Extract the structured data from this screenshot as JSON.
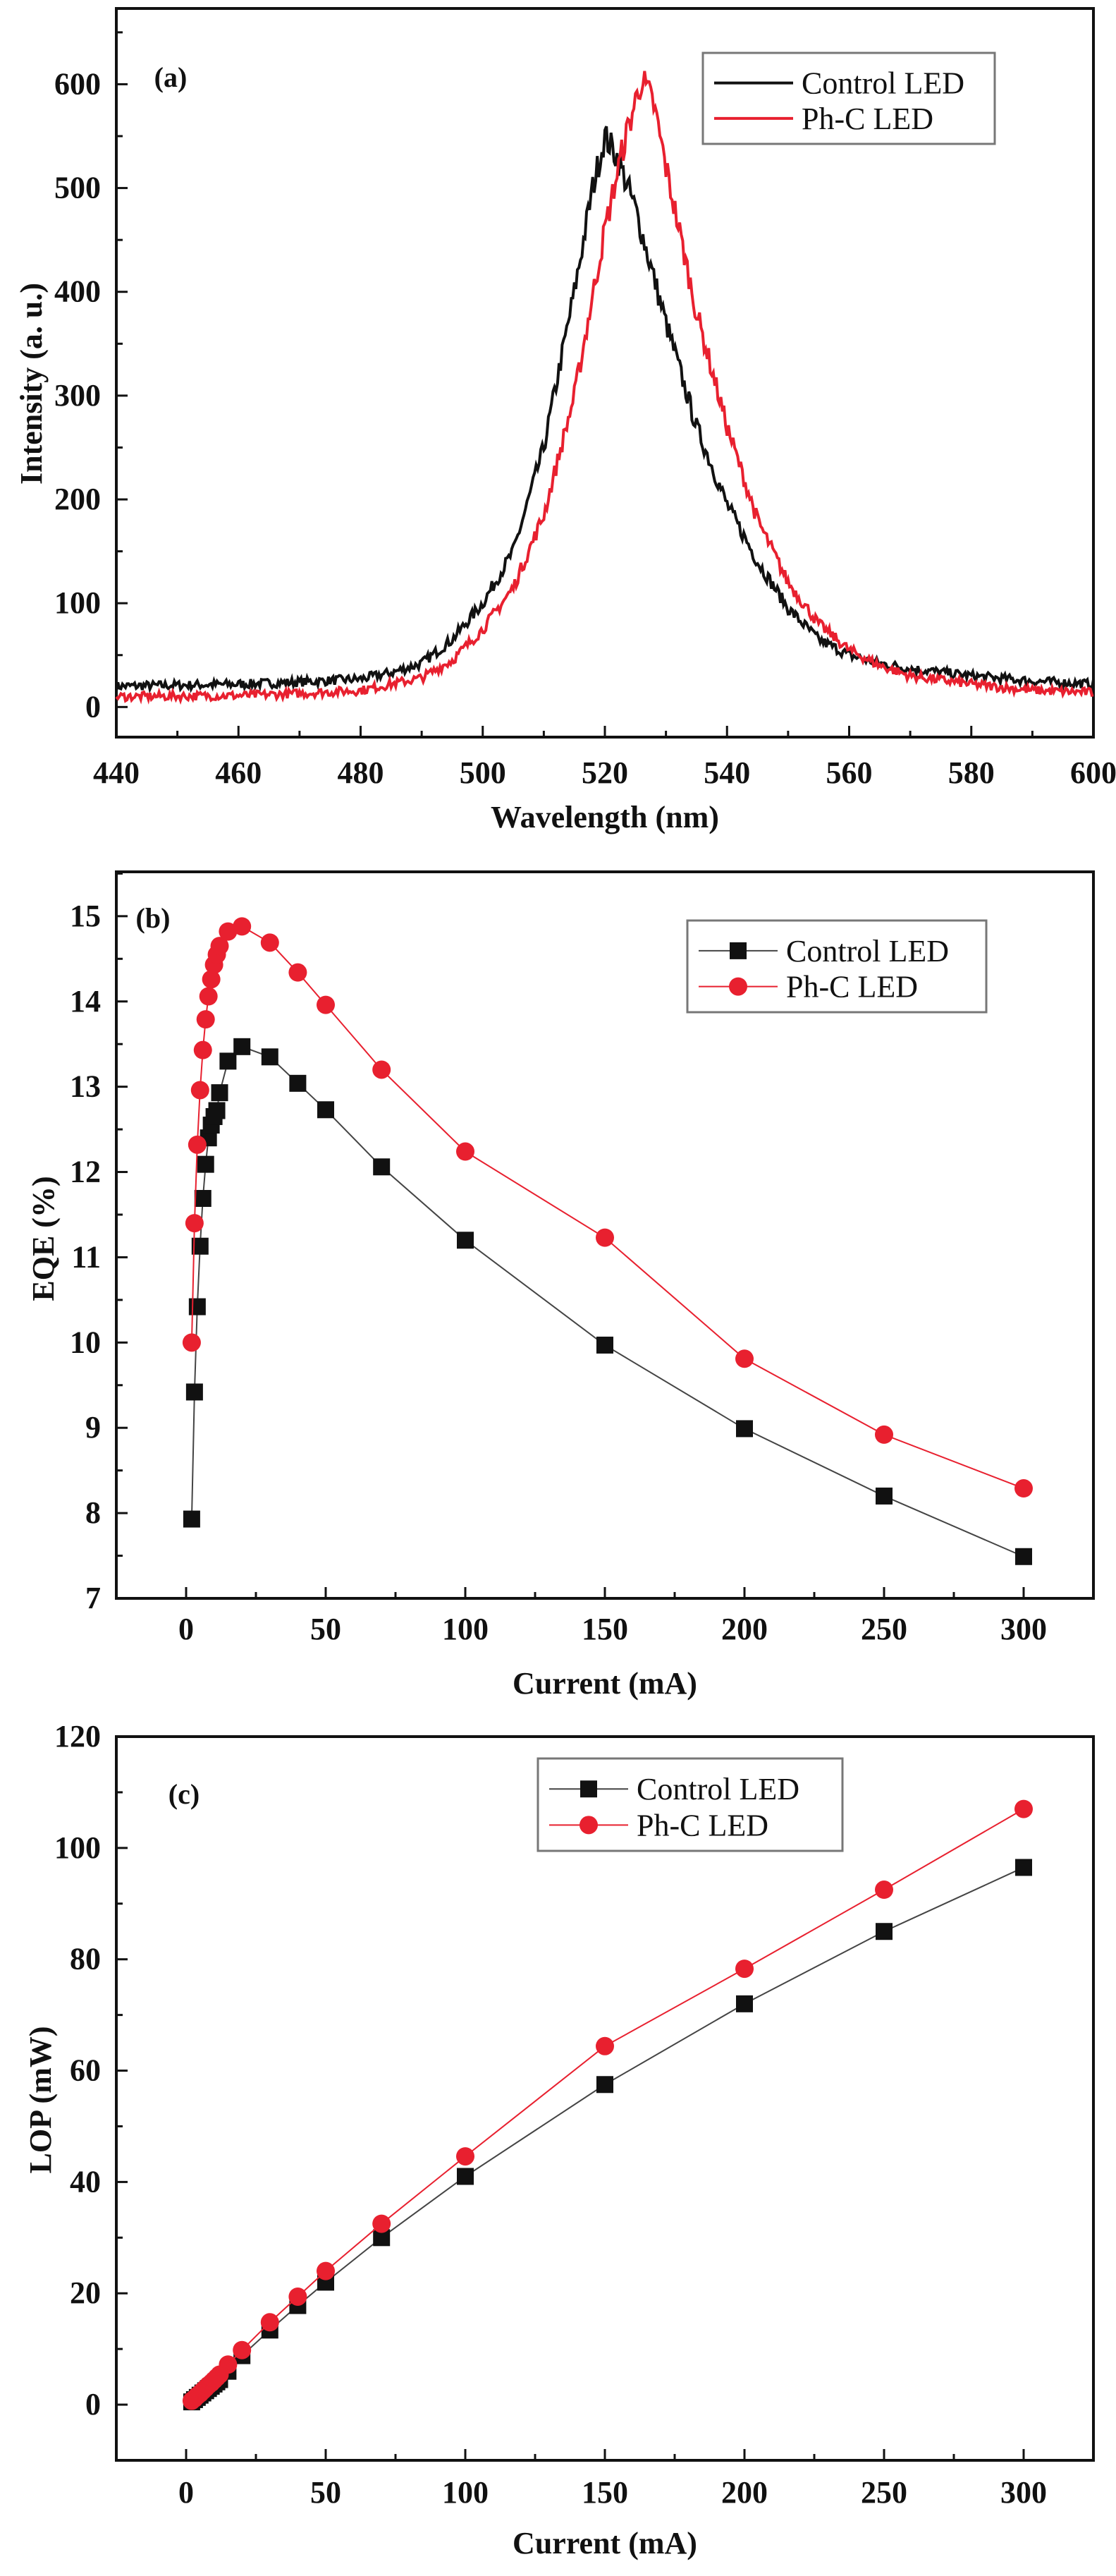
{
  "chart_data": [
    {
      "type": "line",
      "panel_label": "(a)",
      "xlabel": "Wavelength (nm)",
      "ylabel": "Intensity (a. u.)",
      "xlim": [
        440,
        600
      ],
      "ylim": [
        -29,
        673
      ],
      "xticks": [
        "440",
        "460",
        "480",
        "500",
        "520",
        "540",
        "560",
        "580",
        "600"
      ],
      "yticks": [
        "0",
        "100",
        "200",
        "300",
        "400",
        "500",
        "600"
      ],
      "legend_position": "top-right",
      "series": [
        {
          "name": "Control LED",
          "color": "#111111",
          "x": [
            440,
            450,
            460,
            470,
            480,
            485,
            490,
            495,
            500,
            505,
            510,
            515,
            518,
            520,
            522,
            525,
            530,
            535,
            540,
            545,
            550,
            555,
            560,
            565,
            570,
            580,
            590,
            600
          ],
          "y": [
            20,
            21,
            22,
            24,
            27,
            33,
            42,
            65,
            100,
            150,
            250,
            400,
            500,
            550,
            530,
            480,
            370,
            270,
            195,
            140,
            95,
            65,
            50,
            42,
            37,
            30,
            25,
            22
          ]
        },
        {
          "name": "Ph-C LED",
          "color": "#e8202f",
          "x": [
            440,
            460,
            470,
            480,
            490,
            495,
            500,
            505,
            510,
            515,
            520,
            523,
            526,
            528,
            530,
            535,
            540,
            545,
            550,
            555,
            560,
            565,
            570,
            580,
            590,
            600
          ],
          "y": [
            10,
            11,
            13,
            16,
            28,
            45,
            75,
            115,
            185,
            300,
            460,
            540,
            605,
            580,
            520,
            380,
            270,
            180,
            120,
            80,
            55,
            40,
            30,
            22,
            16,
            14
          ]
        }
      ]
    },
    {
      "type": "line",
      "panel_label": "(b)",
      "xlabel": "Current (mA)",
      "ylabel": "EQE (%)",
      "xlim": [
        -25,
        325
      ],
      "ylim": [
        7,
        15.52
      ],
      "xticks": [
        "0",
        "50",
        "100",
        "150",
        "200",
        "250",
        "300"
      ],
      "yticks": [
        "7",
        "8",
        "9",
        "10",
        "11",
        "12",
        "13",
        "14",
        "15"
      ],
      "legend_position": "top-right",
      "series": [
        {
          "name": "Control LED",
          "marker": "square",
          "color": "#111111",
          "x": [
            2,
            3,
            4,
            5,
            6,
            7,
            8,
            9,
            10,
            11,
            12,
            15,
            20,
            30,
            40,
            50,
            70,
            100,
            150,
            200,
            250,
            300
          ],
          "y": [
            7.93,
            9.42,
            10.42,
            11.13,
            11.69,
            12.09,
            12.4,
            12.55,
            12.65,
            12.72,
            12.93,
            13.3,
            13.47,
            13.35,
            13.04,
            12.73,
            12.06,
            11.2,
            9.97,
            8.99,
            8.2,
            7.49
          ]
        },
        {
          "name": "Ph-C LED",
          "marker": "circle",
          "color": "#e8202f",
          "x": [
            2,
            3,
            4,
            5,
            6,
            7,
            8,
            9,
            10,
            11,
            12,
            15,
            20,
            30,
            40,
            50,
            70,
            100,
            150,
            200,
            250,
            300
          ],
          "y": [
            10.0,
            11.4,
            12.32,
            12.96,
            13.43,
            13.79,
            14.06,
            14.26,
            14.43,
            14.55,
            14.65,
            14.82,
            14.88,
            14.69,
            14.34,
            13.96,
            13.2,
            12.24,
            11.23,
            9.81,
            8.92,
            8.29
          ]
        }
      ]
    },
    {
      "type": "line",
      "panel_label": "(c)",
      "xlabel": "Current (mA)",
      "ylabel": "LOP (mW)",
      "xlim": [
        -25,
        325
      ],
      "ylim": [
        -10,
        120
      ],
      "xticks": [
        "0",
        "50",
        "100",
        "150",
        "200",
        "250",
        "300"
      ],
      "yticks": [
        "0",
        "20",
        "40",
        "60",
        "80",
        "100",
        "120"
      ],
      "legend_position": "top-center",
      "series": [
        {
          "name": "Control LED",
          "marker": "square",
          "color": "#111111",
          "x": [
            2,
            3,
            4,
            5,
            6,
            7,
            8,
            9,
            10,
            11,
            12,
            15,
            20,
            30,
            40,
            50,
            70,
            100,
            150,
            200,
            250,
            300
          ],
          "y": [
            0.5,
            0.9,
            1.3,
            1.7,
            2.1,
            2.5,
            2.9,
            3.3,
            3.7,
            4.1,
            4.5,
            6.0,
            8.8,
            13.4,
            17.8,
            22,
            30,
            41,
            57.5,
            72,
            85,
            96.5
          ]
        },
        {
          "name": "Ph-C LED",
          "marker": "circle",
          "color": "#e8202f",
          "x": [
            2,
            3,
            4,
            5,
            6,
            7,
            8,
            9,
            10,
            11,
            12,
            15,
            20,
            30,
            40,
            50,
            70,
            100,
            150,
            200,
            250,
            300
          ],
          "y": [
            0.7,
            1.1,
            1.6,
            2.0,
            2.5,
            3.0,
            3.5,
            3.9,
            4.4,
            4.9,
            5.4,
            7.2,
            9.8,
            14.8,
            19.4,
            24,
            32.5,
            44.6,
            64.4,
            78.3,
            92.5,
            107
          ]
        }
      ]
    }
  ]
}
